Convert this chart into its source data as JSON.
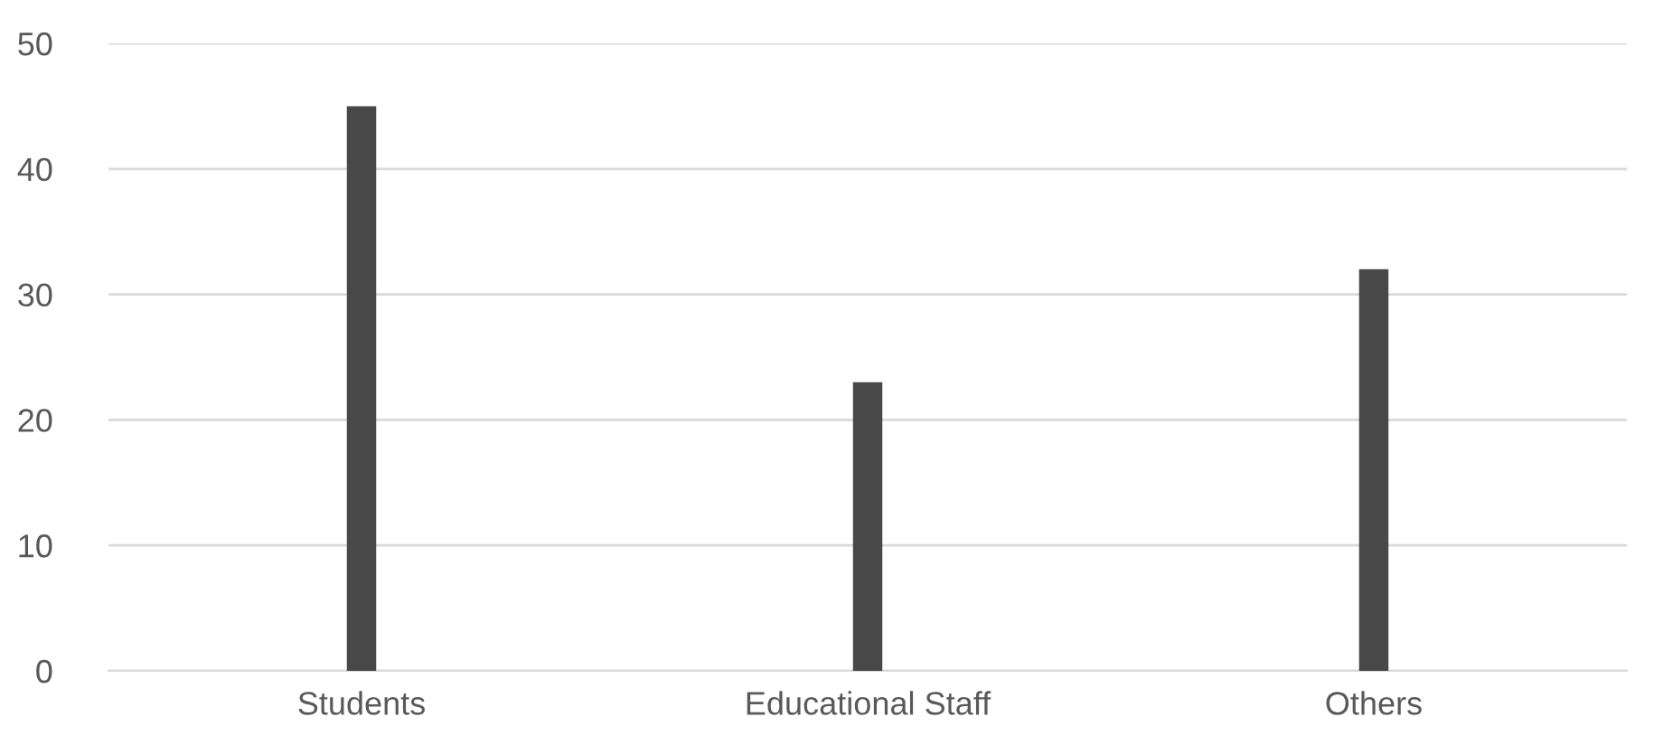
{
  "chart_data": {
    "type": "bar",
    "categories": [
      "Students",
      "Educational Staff",
      "Others"
    ],
    "values": [
      45,
      23,
      32
    ],
    "color": "#484848",
    "ylim": [
      0,
      50
    ],
    "yticks": [
      0,
      10,
      20,
      30,
      40,
      50
    ],
    "grid": "y"
  }
}
